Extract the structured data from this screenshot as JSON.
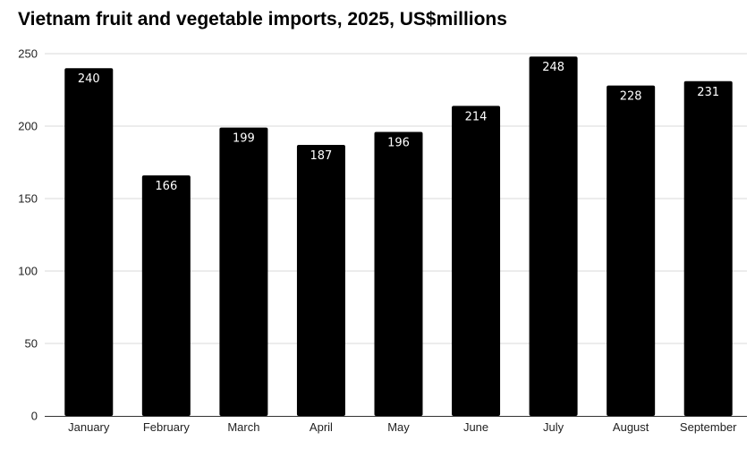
{
  "chart_data": {
    "type": "bar",
    "title": "Vietnam fruit and vegetable imports, 2025, US$millions",
    "xlabel": "",
    "ylabel": "",
    "categories": [
      "January",
      "February",
      "March",
      "April",
      "May",
      "June",
      "July",
      "August",
      "September"
    ],
    "values": [
      240,
      166,
      199,
      187,
      196,
      214,
      248,
      228,
      231
    ],
    "ylim": [
      0,
      250
    ],
    "yticks": [
      0,
      50,
      100,
      150,
      200,
      250
    ],
    "grid": true,
    "legend": "none",
    "bar_color": "#000000",
    "grid_color": "#d9d9d9",
    "label_color": "#ffffff"
  }
}
